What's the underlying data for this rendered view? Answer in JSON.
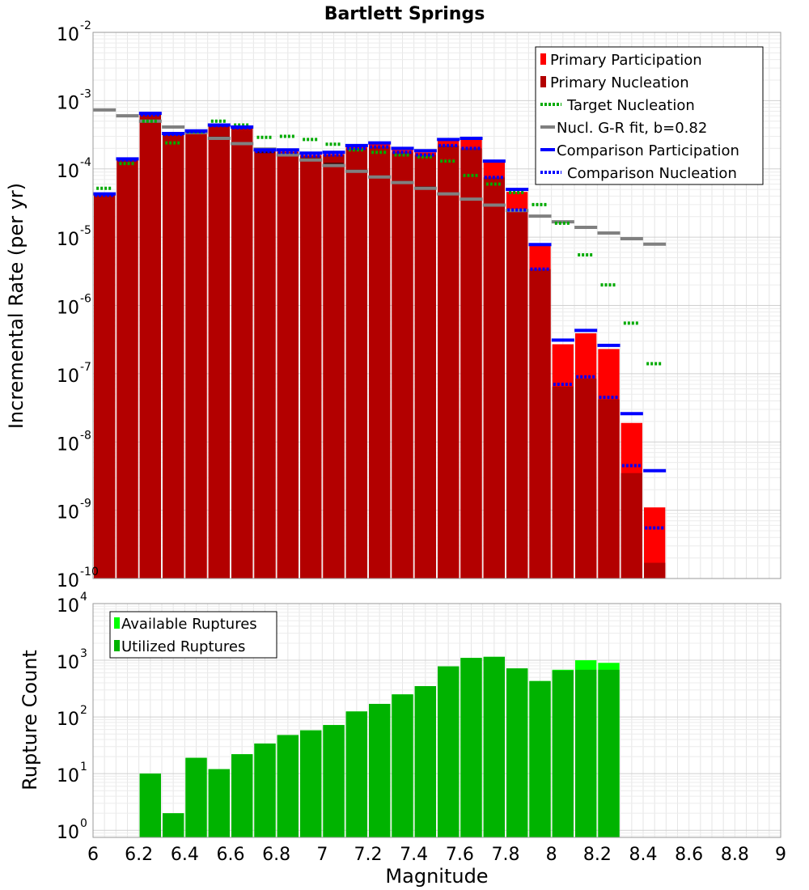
{
  "chart_data": [
    {
      "type": "bar",
      "title": "Bartlett Springs",
      "xlabel": "Magnitude",
      "ylabel": "Incremental Rate (per yr)",
      "yscale": "log",
      "xlim": [
        6,
        9
      ],
      "ylim": [
        1e-10,
        0.01
      ],
      "y_tick_exponents": [
        "-10",
        "-9",
        "-8",
        "-7",
        "-6",
        "-5",
        "-4",
        "-3",
        "-2"
      ],
      "grid": true,
      "legend_position": "top-right",
      "x": [
        6.05,
        6.15,
        6.25,
        6.35,
        6.45,
        6.55,
        6.65,
        6.75,
        6.85,
        6.95,
        7.05,
        7.15,
        7.25,
        7.35,
        7.45,
        7.55,
        7.65,
        7.75,
        7.85,
        7.95,
        8.05,
        8.15,
        8.25,
        8.35,
        8.45
      ],
      "series": [
        {
          "name": "Primary Participation",
          "color": "#ff0000",
          "style": "bar",
          "values": [
            4.1e-05,
            0.000135,
            0.00062,
            0.00032,
            0.00035,
            0.00043,
            0.0004,
            0.00018,
            0.00018,
            0.00016,
            0.000165,
            0.00021,
            0.00023,
            0.00019,
            0.000175,
            0.00026,
            0.00027,
            0.000125,
            4.6e-05,
            7.5e-06,
            2.7e-07,
            3.9e-07,
            2.3e-07,
            1.9e-08,
            1.1e-09
          ]
        },
        {
          "name": "Primary Nucleation",
          "color": "#b30000",
          "style": "bar",
          "values": [
            4.1e-05,
            0.000135,
            0.00062,
            0.00032,
            0.00035,
            0.00043,
            0.0004,
            0.00018,
            0.000175,
            0.000155,
            0.00016,
            0.0002,
            0.00021,
            0.000175,
            0.00016,
            0.00022,
            0.0002,
            7.5e-05,
            2.5e-05,
            3.4e-06,
            6.5e-08,
            8.5e-08,
            4.2e-08,
            3.5e-09,
            1.7e-10
          ]
        },
        {
          "name": "Target Nucleation",
          "color": "#00aa00",
          "style": "dotted",
          "values": [
            5.2e-05,
            0.00012,
            0.0005,
            0.00024,
            0.00035,
            0.0005,
            0.00044,
            0.00029,
            0.0003,
            0.00027,
            0.00023,
            0.00019,
            0.000175,
            0.00016,
            0.00015,
            0.00013,
            8e-05,
            6e-05,
            4.5e-05,
            3e-05,
            1.6e-05,
            5.5e-06,
            2e-06,
            5.5e-07,
            1.4e-07
          ]
        },
        {
          "name": "Nucl. G-R fit, b=0.82",
          "color": "#808080",
          "style": "line",
          "values": [
            0.00073,
            0.0006,
            0.0005,
            0.00041,
            0.00034,
            0.00028,
            0.000235,
            0.000195,
            0.00016,
            0.000135,
            0.000112,
            9.2e-05,
            7.6e-05,
            6.3e-05,
            5.2e-05,
            4.3e-05,
            3.6e-05,
            2.95e-05,
            2.45e-05,
            2.03e-05,
            1.68e-05,
            1.39e-05,
            1.15e-05,
            9.5e-06,
            7.9e-06
          ]
        },
        {
          "name": "Comparison Participation",
          "color": "#0000ff",
          "style": "line",
          "values": [
            4.3e-05,
            0.00014,
            0.00065,
            0.00033,
            0.00036,
            0.00044,
            0.00041,
            0.00019,
            0.00019,
            0.00017,
            0.000175,
            0.00022,
            0.00024,
            0.0002,
            0.000185,
            0.00027,
            0.00028,
            0.00013,
            5e-05,
            7.8e-06,
            3.1e-07,
            4.3e-07,
            2.6e-07,
            2.6e-08,
            3.8e-09
          ]
        },
        {
          "name": "Comparison Nucleation",
          "color": "#0000ff",
          "style": "dotted",
          "values": [
            4.1e-05,
            0.000135,
            0.00062,
            0.00032,
            0.00035,
            0.00043,
            0.0004,
            0.00018,
            0.000175,
            0.000155,
            0.00016,
            0.0002,
            0.00021,
            0.000175,
            0.00016,
            0.00022,
            0.0002,
            7.5e-05,
            2.5e-05,
            3.4e-06,
            7e-08,
            9e-08,
            4.5e-08,
            4.5e-09,
            5.5e-10
          ]
        }
      ],
      "nucleation_marker_color": "#3a0000",
      "nucleation_marker_values": [
        null,
        null,
        null,
        null,
        null,
        0.00029,
        0.00024,
        0.000175,
        0.000165,
        0.00014,
        0.00012,
        9.5e-05,
        7.8e-05,
        6.5e-05,
        5.4e-05,
        4.4e-05,
        3.6e-05,
        3e-05,
        null,
        null,
        null,
        null,
        null,
        null,
        null
      ]
    },
    {
      "type": "bar",
      "xlabel": "Magnitude",
      "ylabel": "Rupture Count",
      "yscale": "log",
      "xlim": [
        6,
        9
      ],
      "ylim": [
        0.75,
        10000
      ],
      "y_tick_exponents": [
        "0",
        "1",
        "2",
        "3",
        "4"
      ],
      "x_tick_labels": [
        "6",
        "6.2",
        "6.4",
        "6.6",
        "6.8",
        "7",
        "7.2",
        "7.4",
        "7.6",
        "7.8",
        "8",
        "8.2",
        "8.4",
        "8.6",
        "8.8",
        "9"
      ],
      "grid": true,
      "legend_position": "top-left",
      "x": [
        6.05,
        6.15,
        6.25,
        6.35,
        6.45,
        6.55,
        6.65,
        6.75,
        6.85,
        6.95,
        7.05,
        7.15,
        7.25,
        7.35,
        7.45,
        7.55,
        7.65,
        7.75,
        7.85,
        7.95,
        8.05,
        8.15,
        8.25,
        8.35,
        8.45
      ],
      "series": [
        {
          "name": "Available Ruptures",
          "color": "#00ff00",
          "values": [
            0,
            0,
            10,
            2,
            19,
            12,
            22,
            34,
            48,
            58,
            72,
            125,
            170,
            250,
            350,
            780,
            1100,
            1150,
            720,
            430,
            680,
            1000,
            900,
            0,
            0
          ]
        },
        {
          "name": "Utilized Ruptures",
          "color": "#00b300",
          "values": [
            0,
            0,
            10,
            2,
            19,
            12,
            22,
            34,
            48,
            58,
            72,
            125,
            170,
            250,
            350,
            780,
            1100,
            1150,
            720,
            430,
            660,
            680,
            680,
            0,
            0
          ]
        }
      ]
    }
  ]
}
